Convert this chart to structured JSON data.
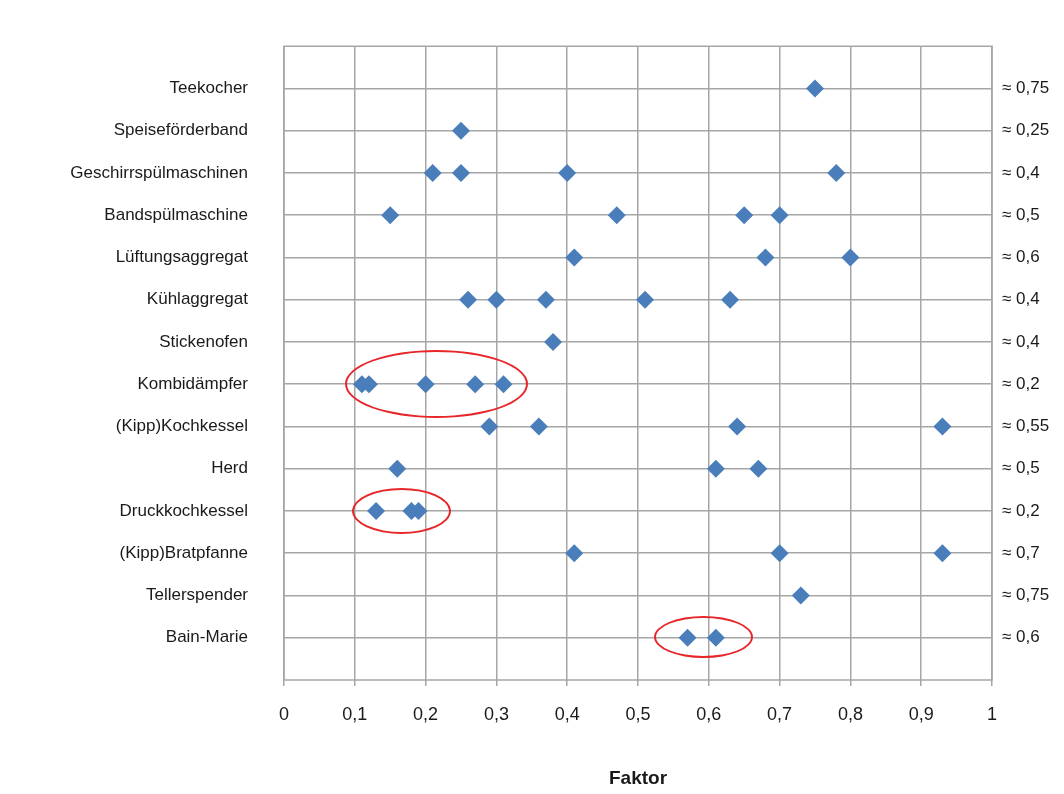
{
  "chart_data": {
    "type": "scatter",
    "orientation": "horizontal",
    "xlabel": "Faktor",
    "categories": [
      "Teekocher",
      "Speiseförderband",
      "Geschirrspülmaschinen",
      "Bandspülmaschine",
      "Lüftungsaggregat",
      "Kühlaggregat",
      "Stickenofen",
      "Kombidämpfer",
      "(Kipp)Kochkessel",
      "Herd",
      "Druckkochkessel",
      "(Kipp)Bratpfanne",
      "Tellerspender",
      "Bain-Marie"
    ],
    "y2_categories": [
      "≈ 0,75",
      "≈ 0,25",
      "≈ 0,4",
      "≈ 0,5",
      "≈ 0,6",
      "≈ 0,4",
      "≈ 0,4",
      "≈ 0,2",
      "≈ 0,55",
      "≈ 0,5",
      "≈ 0,2",
      "≈ 0,7",
      "≈ 0,75",
      "≈ 0,6"
    ],
    "series": [
      {
        "color": "#4a7ebb",
        "values": [
          0.75,
          0.25,
          0.21,
          0.15,
          0.41,
          0.26,
          0.38,
          0.11,
          0.29,
          0.16,
          0.13,
          0.41,
          0.73,
          0.57
        ]
      },
      {
        "color": "#4a7ebb",
        "values": [
          null,
          null,
          0.25,
          0.47,
          0.68,
          0.3,
          null,
          0.12,
          0.36,
          0.61,
          0.18,
          0.7,
          null,
          0.61
        ]
      },
      {
        "color": "#4a7ebb",
        "values": [
          null,
          null,
          0.4,
          0.65,
          0.8,
          0.37,
          null,
          0.2,
          0.64,
          0.67,
          0.19,
          0.93,
          null,
          null
        ]
      },
      {
        "color": "#4a7ebb",
        "values": [
          null,
          null,
          0.78,
          0.7,
          null,
          0.51,
          null,
          0.27,
          0.93,
          null,
          null,
          null,
          null,
          null
        ]
      },
      {
        "color": "#4a7ebb",
        "values": [
          null,
          null,
          null,
          null,
          null,
          0.63,
          null,
          0.31,
          null,
          null,
          null,
          null,
          null,
          null
        ]
      }
    ],
    "xlim": [
      0,
      1
    ],
    "xticks": [
      0,
      {
        "value": 0.1,
        "label": "0,1"
      },
      {
        "value": 0.2,
        "label": "0,2"
      },
      {
        "value": 0.3,
        "label": "0,3"
      },
      {
        "value": 0.4,
        "label": "0,4"
      },
      {
        "value": 0.5,
        "label": "0,5"
      },
      {
        "value": 0.6,
        "label": "0,6"
      },
      {
        "value": 0.7,
        "label": "0,7"
      },
      {
        "value": 0.8,
        "label": "0,8"
      },
      {
        "value": 0.9,
        "label": "0,9"
      },
      1
    ],
    "grid": true,
    "legend": false,
    "marker": "diamond"
  }
}
